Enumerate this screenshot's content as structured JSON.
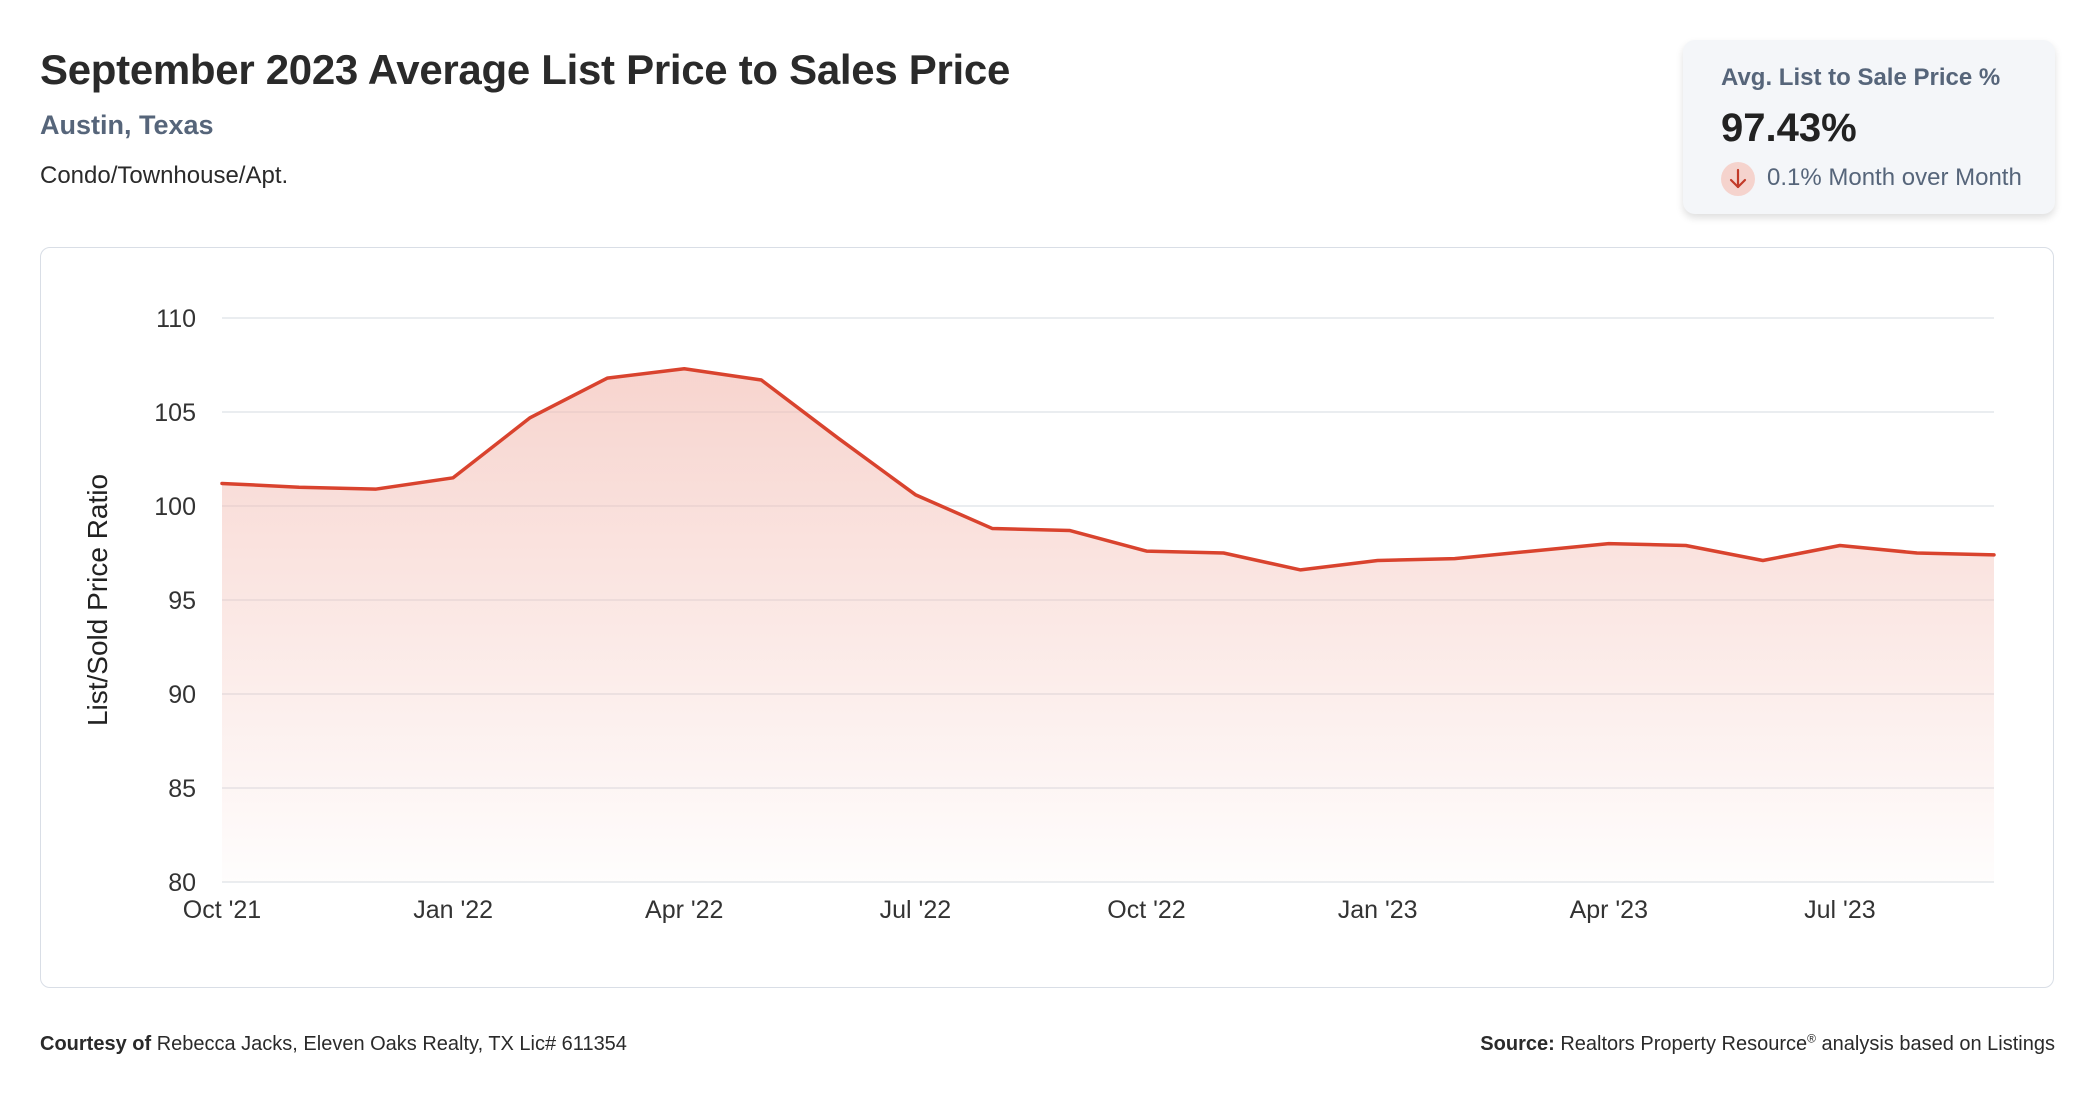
{
  "header": {
    "title": "September 2023 Average List Price to Sales Price",
    "location": "Austin, Texas",
    "property_type": "Condo/Townhouse/Apt."
  },
  "stat_card": {
    "label": "Avg. List to Sale Price %",
    "value": "97.43%",
    "change": "0.1% Month over Month",
    "direction": "down",
    "icon": "arrow-down-icon"
  },
  "footer": {
    "courtesy_label": "Courtesy of",
    "courtesy_text": "Rebecca Jacks, Eleven Oaks Realty, TX Lic# 611354",
    "source_label": "Source:",
    "source_text_1": "Realtors Property Resource",
    "source_mark": "®",
    "source_text_2": " analysis based on Listings"
  },
  "colors": {
    "line": "#d9432e",
    "area_top": "#f4c7c0",
    "grid": "#e4e7ec",
    "axis_text": "#333333",
    "badge_bg": "#f5d3cd",
    "badge_arrow": "#c23a28"
  },
  "chart_data": {
    "type": "area",
    "ylabel": "List/Sold Price Ratio",
    "xlabel": "",
    "ylim": [
      80,
      110
    ],
    "yticks": [
      80,
      85,
      90,
      95,
      100,
      105,
      110
    ],
    "grid": true,
    "x": [
      "Oct '21",
      "Nov '21",
      "Dec '21",
      "Jan '22",
      "Feb '22",
      "Mar '22",
      "Apr '22",
      "May '22",
      "Jun '22",
      "Jul '22",
      "Aug '22",
      "Sep '22",
      "Oct '22",
      "Nov '22",
      "Dec '22",
      "Jan '23",
      "Feb '23",
      "Mar '23",
      "Apr '23",
      "May '23",
      "Jun '23",
      "Jul '23",
      "Aug '23",
      "Sep '23"
    ],
    "xtick_labels": [
      "Oct '21",
      "Jan '22",
      "Apr '22",
      "Jul '22",
      "Oct '22",
      "Jan '23",
      "Apr '23",
      "Jul '23"
    ],
    "series": [
      {
        "values": [
          101.2,
          101.0,
          100.9,
          101.5,
          104.7,
          106.8,
          107.3,
          106.7,
          103.6,
          100.6,
          98.8,
          98.7,
          97.6,
          97.5,
          96.6,
          97.1,
          97.2,
          97.6,
          98.0,
          97.9,
          97.1,
          97.9,
          97.5,
          97.4
        ]
      }
    ]
  }
}
